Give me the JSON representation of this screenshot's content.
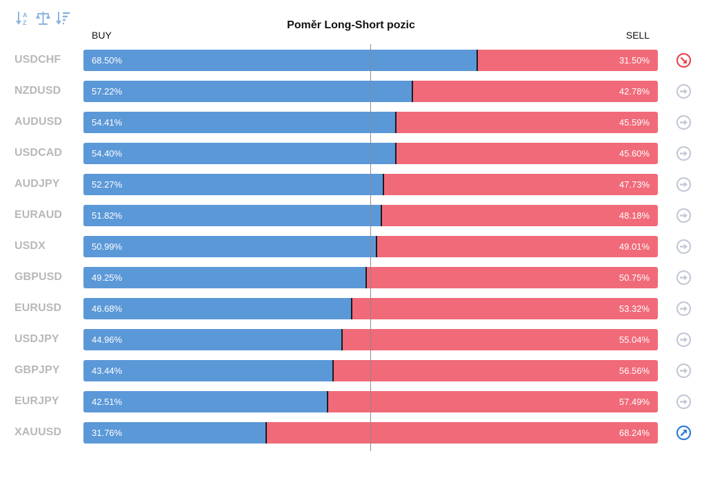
{
  "colors": {
    "buy": "#5b98d8",
    "sell": "#f06a79",
    "neutral_icon": "#c3c9d6",
    "bearish_icon": "#e8474e",
    "bullish_icon": "#2e7bd6",
    "toolbar_icon": "#8db3dd"
  },
  "toolbar": {
    "icons": [
      "sort-alphabetical-icon",
      "balance-scale-icon",
      "sort-descending-icon"
    ]
  },
  "chart_data": {
    "type": "bar",
    "subtype": "stacked-horizontal-100",
    "title": "Poměr Long-Short pozic",
    "legend": [
      "BUY",
      "SELL"
    ],
    "xlim": [
      0,
      100
    ],
    "reference_line": 50,
    "categories": [
      "USDCHF",
      "NZDUSD",
      "AUDUSD",
      "USDCAD",
      "AUDJPY",
      "EURAUD",
      "USDX",
      "GBPUSD",
      "EURUSD",
      "USDJPY",
      "GBPJPY",
      "EURJPY",
      "XAUUSD"
    ],
    "series": [
      {
        "name": "BUY",
        "values": [
          68.5,
          57.22,
          54.41,
          54.4,
          52.27,
          51.82,
          50.99,
          49.25,
          46.68,
          44.96,
          43.44,
          42.51,
          31.76
        ]
      },
      {
        "name": "SELL",
        "values": [
          31.5,
          42.78,
          45.59,
          45.6,
          47.73,
          48.18,
          49.01,
          50.75,
          53.32,
          55.04,
          56.56,
          57.49,
          68.24
        ]
      }
    ],
    "buy_labels": [
      "68.50%",
      "57.22%",
      "54.41%",
      "54.40%",
      "52.27%",
      "51.82%",
      "50.99%",
      "49.25%",
      "46.68%",
      "44.96%",
      "43.44%",
      "42.51%",
      "31.76%"
    ],
    "sell_labels": [
      "31.50%",
      "42.78%",
      "45.59%",
      "45.60%",
      "47.73%",
      "48.18%",
      "49.01%",
      "50.75%",
      "53.32%",
      "55.04%",
      "56.56%",
      "57.49%",
      "68.24%"
    ],
    "signals": [
      "bearish",
      "neutral",
      "neutral",
      "neutral",
      "neutral",
      "neutral",
      "neutral",
      "neutral",
      "neutral",
      "neutral",
      "neutral",
      "neutral",
      "bullish"
    ]
  }
}
